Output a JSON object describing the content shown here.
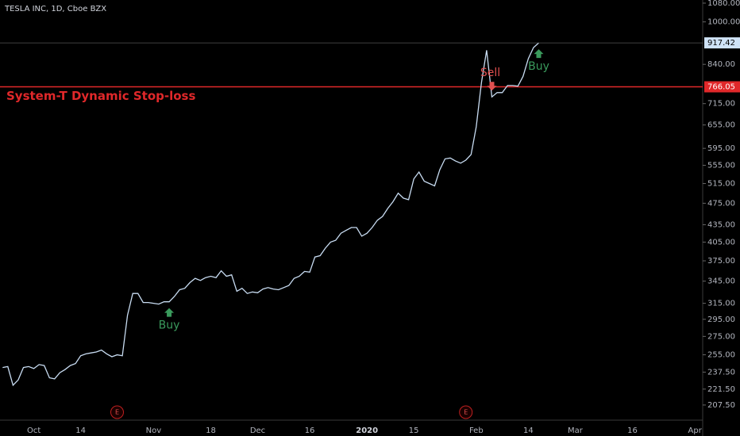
{
  "chart_data": {
    "type": "line",
    "title": "TESLA INC, 1D, Cboe BZX",
    "color": "#c8dcf2",
    "log_scale": true,
    "categories": [
      null,
      null,
      null,
      null,
      null,
      null,
      "Oct",
      null,
      null,
      null,
      null,
      null,
      null,
      null,
      null,
      "14",
      null,
      null,
      null,
      null,
      null,
      null,
      null,
      null,
      null,
      null,
      null,
      null,
      null,
      "Nov",
      null,
      null,
      null,
      null,
      null,
      null,
      null,
      null,
      null,
      null,
      "18",
      null,
      null,
      null,
      null,
      null,
      null,
      null,
      null,
      "Dec",
      null,
      null,
      null,
      null,
      null,
      null,
      null,
      null,
      null,
      "16",
      null,
      null,
      null,
      null,
      null,
      null,
      null,
      null,
      null,
      null,
      "2020",
      null,
      null,
      null,
      null,
      null,
      null,
      null,
      null,
      "15",
      null,
      null,
      null,
      null,
      null,
      null,
      null,
      null,
      null,
      null,
      null,
      "Feb",
      null,
      null,
      null,
      null,
      null,
      null,
      null,
      null,
      null,
      "14",
      null,
      null,
      null,
      null,
      null,
      null,
      null,
      null,
      "Mar",
      null,
      null,
      null,
      null,
      null,
      null,
      null,
      null,
      null,
      null,
      "16",
      null,
      null,
      null,
      null,
      null,
      null,
      null,
      null,
      null,
      null,
      null,
      "Apr",
      null
    ],
    "values": [
      242,
      243,
      225,
      230,
      242,
      243,
      241,
      245,
      244,
      232,
      231,
      237,
      240,
      244,
      246,
      254,
      256,
      257,
      258,
      260,
      256,
      253,
      255,
      254,
      300,
      328,
      328,
      316,
      316,
      315,
      314,
      317,
      317,
      324,
      333,
      335,
      343,
      349,
      346,
      350,
      352,
      350,
      360,
      352,
      354,
      331,
      335,
      328,
      330,
      329,
      334,
      336,
      334,
      333,
      336,
      339,
      349,
      352,
      359,
      358,
      381,
      383,
      395,
      405,
      408,
      420,
      425,
      430,
      430,
      415,
      420,
      430,
      443,
      450,
      465,
      478,
      495,
      485,
      482,
      525,
      540,
      520,
      515,
      510,
      545,
      570,
      572,
      565,
      560,
      567,
      580,
      650,
      780,
      890,
      735,
      748,
      748,
      770,
      770,
      768,
      800,
      860,
      900,
      917.42,
      null,
      null,
      null,
      null,
      null,
      null,
      null,
      null,
      null,
      null,
      null,
      null,
      null,
      null,
      null,
      null,
      null,
      null,
      null,
      null,
      null,
      null,
      null,
      null,
      null,
      null,
      null,
      null,
      null,
      null,
      null
    ],
    "ylim": [
      195,
      1094
    ],
    "yticks": [
      {
        "value": 1080,
        "label": "1080.00"
      },
      {
        "value": 1000,
        "label": "1000.00"
      },
      {
        "value": 840,
        "label": "840.00"
      },
      {
        "value": 715,
        "label": "715.00"
      },
      {
        "value": 655,
        "label": "655.00"
      },
      {
        "value": 595,
        "label": "595.00"
      },
      {
        "value": 555,
        "label": "555.00"
      },
      {
        "value": 515,
        "label": "515.00"
      },
      {
        "value": 475,
        "label": "475.00"
      },
      {
        "value": 435,
        "label": "435.00"
      },
      {
        "value": 405,
        "label": "405.00"
      },
      {
        "value": 375,
        "label": "375.00"
      },
      {
        "value": 345,
        "label": "345.00"
      },
      {
        "value": 315,
        "label": "315.00"
      },
      {
        "value": 295,
        "label": "295.00"
      },
      {
        "value": 275,
        "label": "275.00"
      },
      {
        "value": 255,
        "label": "255.00"
      },
      {
        "value": 237.5,
        "label": "237.50"
      },
      {
        "value": 221.5,
        "label": "221.50"
      },
      {
        "value": 207.5,
        "label": "207.50"
      }
    ],
    "stop_loss": {
      "value": 766.05,
      "label": "System-T Dynamic Stop-loss",
      "color": "#e0282a"
    },
    "signals": [
      {
        "text": "Buy",
        "index": 32,
        "kind": "buy"
      },
      {
        "text": "Sell",
        "index": 94,
        "kind": "sell"
      },
      {
        "text": "Buy",
        "index": 103,
        "kind": "buy"
      }
    ],
    "events": [
      {
        "text": "E",
        "index": 22
      },
      {
        "text": "E",
        "index": 89
      }
    ]
  }
}
